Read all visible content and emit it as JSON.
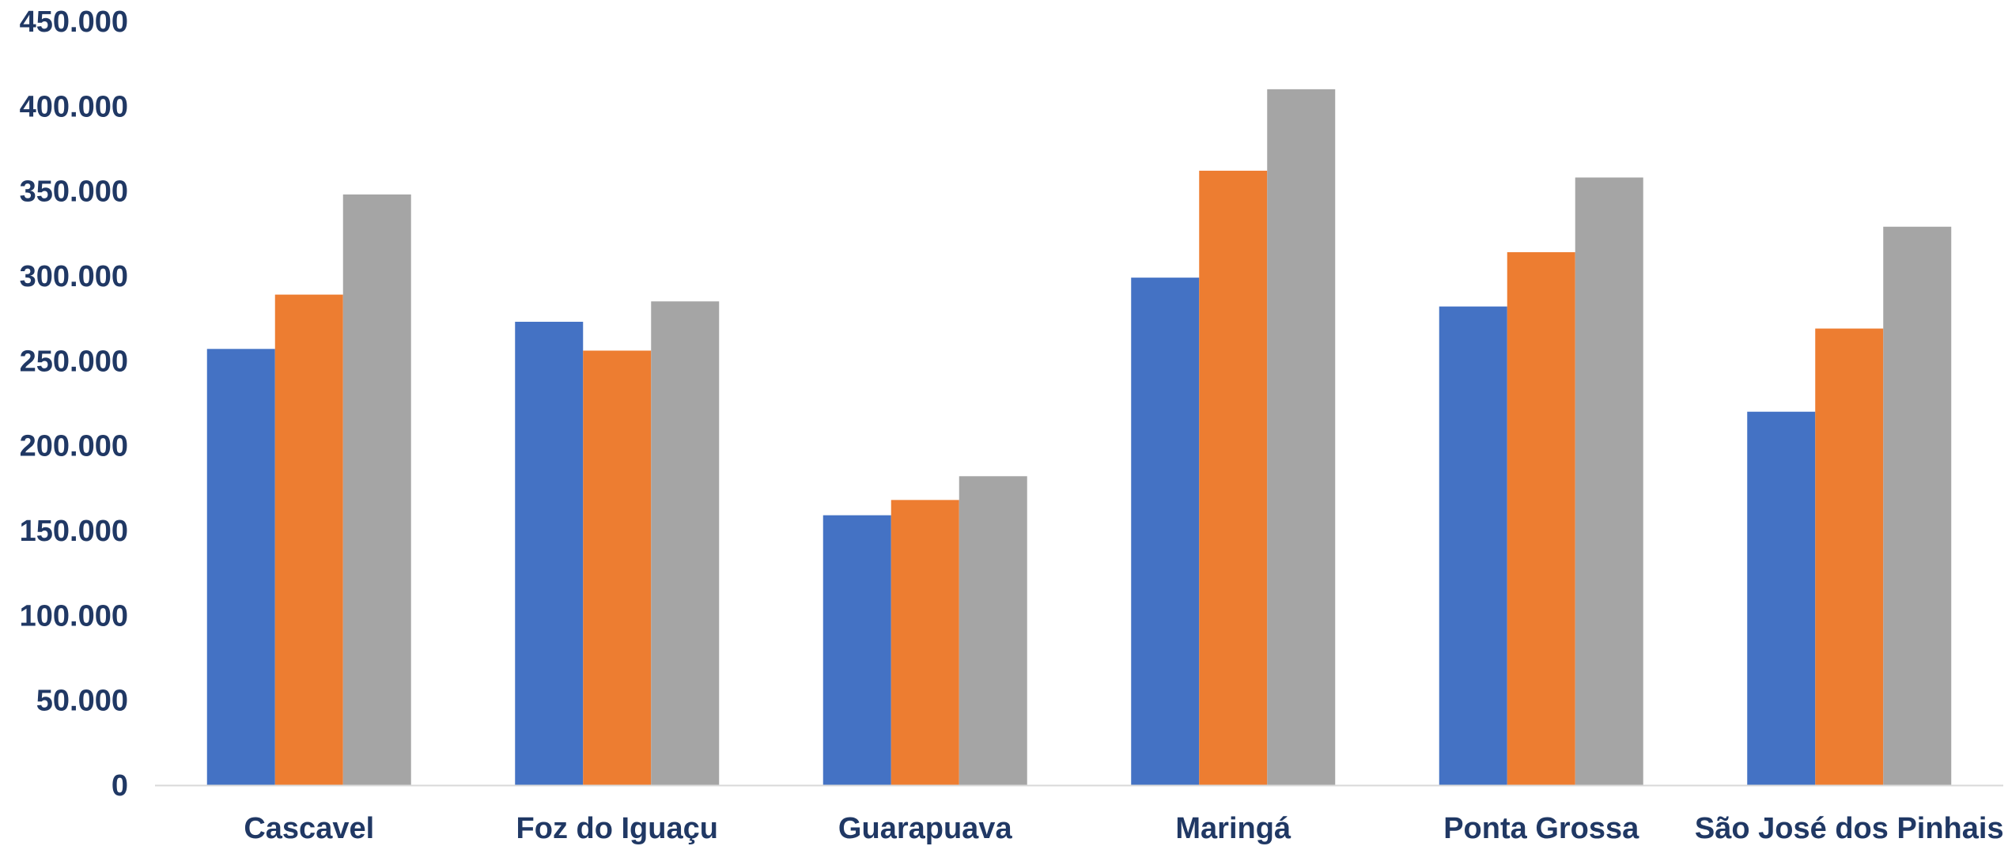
{
  "chart_data": {
    "type": "bar",
    "title": "",
    "xlabel": "",
    "ylabel": "",
    "ylim": [
      0,
      450000
    ],
    "yticks": [
      0,
      50000,
      100000,
      150000,
      200000,
      250000,
      300000,
      350000,
      400000,
      450000
    ],
    "ytick_labels": [
      "0",
      "50.000",
      "100.000",
      "150.000",
      "200.000",
      "250.000",
      "300.000",
      "350.000",
      "400.000",
      "450.000"
    ],
    "categories": [
      "Cascavel",
      "Foz do Iguaçu",
      "Guarapuava",
      "Maringá",
      "Ponta Grossa",
      "São José dos Pinhais"
    ],
    "series": [
      {
        "color": "#4472C4",
        "values": [
          257000,
          273000,
          159000,
          299000,
          282000,
          220000
        ]
      },
      {
        "color": "#ED7D31",
        "values": [
          289000,
          256000,
          168000,
          362000,
          314000,
          269000
        ]
      },
      {
        "color": "#A5A5A5",
        "values": [
          348000,
          285000,
          182000,
          410000,
          358000,
          329000
        ]
      }
    ],
    "grid": false,
    "legend": "none"
  }
}
